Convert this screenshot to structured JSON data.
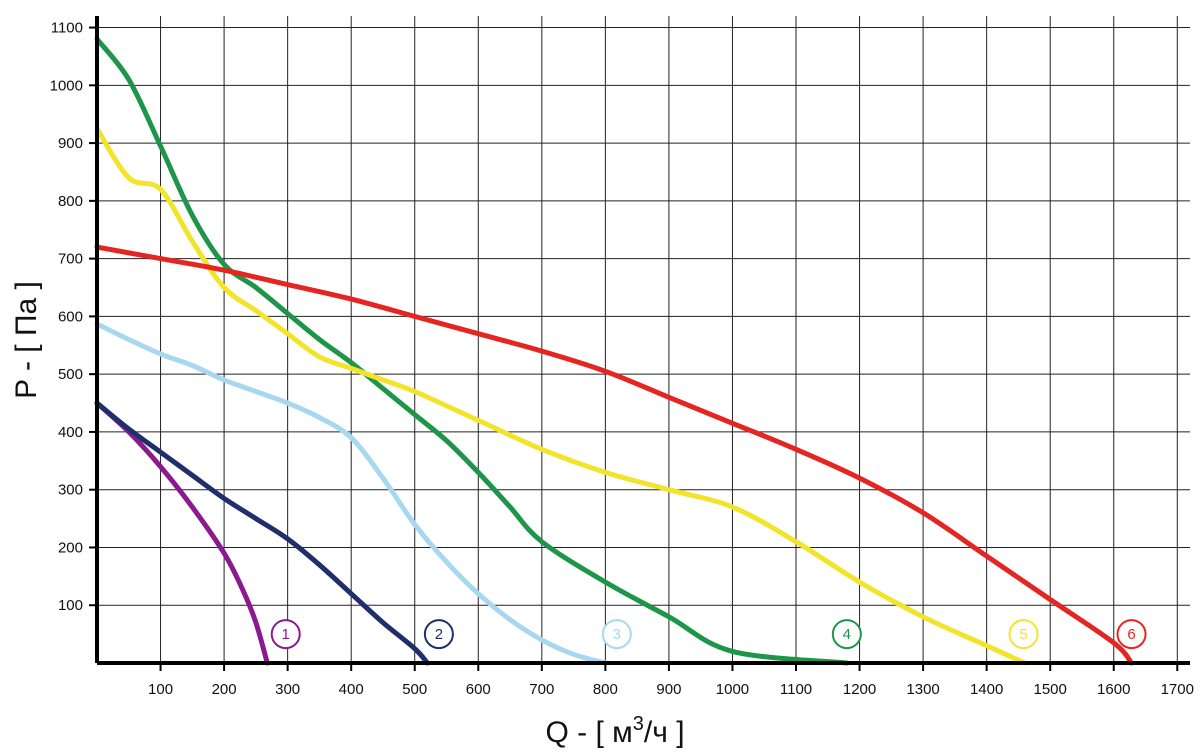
{
  "chart_data": {
    "type": "line",
    "xlabel": {
      "main": "Q - [ м",
      "sup": "3",
      "tail": "/ч ]"
    },
    "ylabel": "P - [ Па ]",
    "xlim": [
      0,
      1720
    ],
    "ylim": [
      0,
      1120
    ],
    "x_ticks": [
      100,
      200,
      300,
      400,
      500,
      600,
      700,
      800,
      900,
      1000,
      1100,
      1200,
      1300,
      1400,
      1500,
      1600,
      1700
    ],
    "y_ticks": [
      100,
      200,
      300,
      400,
      500,
      600,
      700,
      800,
      900,
      1000,
      1100
    ],
    "x_tick_labels": [
      "100",
      "200",
      "300",
      "400",
      "500",
      "600",
      "700",
      "800",
      "900",
      "1000",
      "1100",
      "1200",
      "1300",
      "1400",
      "1500",
      "1600",
      "1700"
    ],
    "y_tick_labels": [
      "100",
      "200",
      "300",
      "400",
      "500",
      "600",
      "700",
      "800",
      "900",
      "1000",
      "1100"
    ],
    "grid": true,
    "series": [
      {
        "name": "1",
        "color": "#8B1A8E",
        "label_x": 297,
        "label_y": 50,
        "points": [
          [
            0,
            450
          ],
          [
            50,
            400
          ],
          [
            100,
            340
          ],
          [
            150,
            270
          ],
          [
            200,
            190
          ],
          [
            230,
            125
          ],
          [
            250,
            70
          ],
          [
            268,
            0
          ]
        ]
      },
      {
        "name": "2",
        "color": "#1F2F6B",
        "label_x": 538,
        "label_y": 50,
        "points": [
          [
            0,
            450
          ],
          [
            50,
            405
          ],
          [
            100,
            365
          ],
          [
            150,
            325
          ],
          [
            200,
            285
          ],
          [
            250,
            250
          ],
          [
            300,
            215
          ],
          [
            350,
            170
          ],
          [
            400,
            120
          ],
          [
            450,
            70
          ],
          [
            500,
            25
          ],
          [
            520,
            0
          ]
        ]
      },
      {
        "name": "3",
        "color": "#A8D8F0",
        "label_x": 818,
        "label_y": 50,
        "points": [
          [
            0,
            587
          ],
          [
            50,
            560
          ],
          [
            100,
            535
          ],
          [
            150,
            515
          ],
          [
            200,
            490
          ],
          [
            250,
            470
          ],
          [
            300,
            450
          ],
          [
            350,
            425
          ],
          [
            400,
            390
          ],
          [
            450,
            320
          ],
          [
            500,
            240
          ],
          [
            550,
            175
          ],
          [
            600,
            120
          ],
          [
            650,
            75
          ],
          [
            700,
            40
          ],
          [
            750,
            15
          ],
          [
            800,
            0
          ]
        ]
      },
      {
        "name": "4",
        "color": "#1E9649",
        "label_x": 1180,
        "label_y": 50,
        "points": [
          [
            0,
            1080
          ],
          [
            50,
            1010
          ],
          [
            100,
            895
          ],
          [
            150,
            775
          ],
          [
            200,
            690
          ],
          [
            250,
            650
          ],
          [
            300,
            605
          ],
          [
            350,
            560
          ],
          [
            400,
            520
          ],
          [
            450,
            475
          ],
          [
            500,
            430
          ],
          [
            550,
            385
          ],
          [
            600,
            330
          ],
          [
            650,
            270
          ],
          [
            700,
            210
          ],
          [
            800,
            140
          ],
          [
            900,
            80
          ],
          [
            1000,
            20
          ],
          [
            1180,
            0
          ]
        ]
      },
      {
        "name": "5",
        "color": "#F2E42B",
        "label_x": 1458,
        "label_y": 50,
        "points": [
          [
            0,
            925
          ],
          [
            50,
            840
          ],
          [
            100,
            820
          ],
          [
            150,
            730
          ],
          [
            200,
            650
          ],
          [
            250,
            610
          ],
          [
            300,
            570
          ],
          [
            350,
            530
          ],
          [
            400,
            510
          ],
          [
            450,
            490
          ],
          [
            500,
            470
          ],
          [
            600,
            420
          ],
          [
            700,
            370
          ],
          [
            800,
            330
          ],
          [
            900,
            300
          ],
          [
            1000,
            270
          ],
          [
            1100,
            210
          ],
          [
            1200,
            140
          ],
          [
            1300,
            80
          ],
          [
            1400,
            30
          ],
          [
            1460,
            0
          ]
        ]
      },
      {
        "name": "6",
        "color": "#E52521",
        "label_x": 1628,
        "label_y": 50,
        "points": [
          [
            0,
            720
          ],
          [
            100,
            700
          ],
          [
            200,
            680
          ],
          [
            300,
            655
          ],
          [
            400,
            630
          ],
          [
            500,
            600
          ],
          [
            600,
            570
          ],
          [
            700,
            540
          ],
          [
            800,
            505
          ],
          [
            900,
            460
          ],
          [
            1000,
            415
          ],
          [
            1100,
            370
          ],
          [
            1200,
            320
          ],
          [
            1300,
            260
          ],
          [
            1400,
            185
          ],
          [
            1500,
            110
          ],
          [
            1600,
            35
          ],
          [
            1628,
            0
          ]
        ]
      }
    ]
  }
}
